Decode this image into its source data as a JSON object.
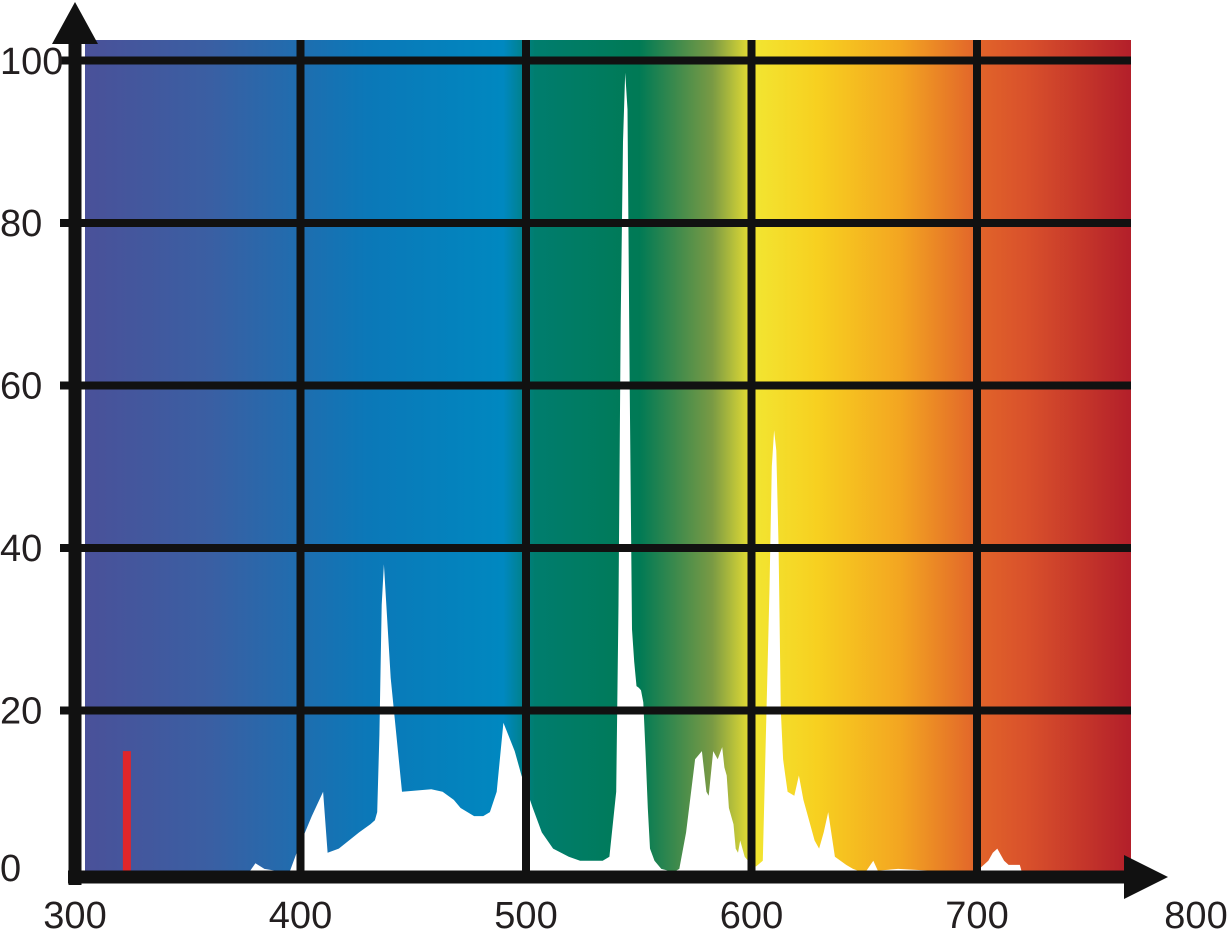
{
  "chart_data": {
    "type": "area",
    "title": "",
    "xlabel": "",
    "ylabel": "",
    "xlim": [
      300,
      800
    ],
    "ylim": [
      0,
      100
    ],
    "x_ticks": [
      "300",
      "400",
      "500",
      "600",
      "700",
      "800"
    ],
    "y_ticks": [
      "0",
      "20",
      "40",
      "60",
      "80",
      "100"
    ],
    "grid": true,
    "background": "visible light spectrum gradient (violet to red)",
    "spectrum_colors": [
      "#4a5199",
      "#3a5fa3",
      "#0b78b8",
      "#0088c0",
      "#007d6e",
      "#007a55",
      "#7a9a44",
      "#f2e531",
      "#f7d020",
      "#f3a521",
      "#e2662a",
      "#d9512b",
      "#b31f2a"
    ],
    "series": [
      {
        "fill_color": "#ffffff",
        "x": [
          377,
          380,
          384,
          395,
          399,
          405,
          410,
          412,
          417,
          426,
          431,
          433,
          434,
          435,
          436,
          437,
          440,
          445,
          458,
          463,
          468,
          471,
          477,
          481,
          484,
          487,
          490,
          495,
          498,
          503,
          507,
          512,
          519,
          524,
          529,
          534,
          537,
          540,
          541,
          542,
          543,
          544,
          545,
          546,
          547,
          548,
          549,
          550,
          551,
          552,
          553,
          554,
          555,
          557,
          560,
          563,
          566,
          568,
          571,
          575,
          578,
          580,
          581,
          583,
          585,
          587,
          588,
          589,
          590,
          591,
          592,
          593,
          594,
          595,
          597,
          600,
          602,
          605,
          608,
          609,
          610,
          611,
          612,
          613,
          614,
          615,
          616,
          619,
          621,
          623,
          625,
          628,
          630,
          632,
          634,
          637,
          642,
          645,
          648,
          651,
          654,
          656,
          665,
          679,
          691,
          698,
          701,
          705,
          707,
          709,
          712,
          714,
          719,
          720
        ],
        "y": [
          0,
          1.2,
          0.5,
          0,
          3,
          7,
          10,
          2.5,
          3,
          5,
          6,
          6.5,
          7.5,
          17,
          33,
          38,
          24,
          10,
          10.3,
          10,
          9,
          8,
          7,
          7,
          7.5,
          10,
          18.5,
          15,
          12,
          8,
          5,
          3,
          2,
          1.5,
          1.5,
          1.5,
          2,
          10,
          33,
          68,
          90,
          98.5,
          94,
          60,
          30,
          26,
          23,
          22.8,
          22.5,
          21,
          15,
          8,
          3,
          1.5,
          0.5,
          0.3,
          0.2,
          0.5,
          5,
          14,
          15,
          10,
          9.5,
          15,
          14,
          15.5,
          13,
          12,
          8,
          7,
          6,
          3,
          2.5,
          4,
          2,
          1,
          0.8,
          1.5,
          35,
          50,
          54.5,
          52,
          40,
          20,
          14,
          12,
          10,
          9.5,
          12,
          9,
          7,
          4,
          3,
          5,
          7.5,
          2,
          1,
          0.5,
          0.2,
          0.3,
          1.5,
          0.3,
          0.5,
          0.3,
          0.3,
          0.2,
          0.5,
          1.5,
          2.5,
          3,
          1.5,
          1,
          1,
          0
        ]
      }
    ],
    "annotations": [
      {
        "type": "vertical-line",
        "x": 323,
        "y_from": 0,
        "y_to": 15,
        "color": "#e0262a"
      }
    ]
  }
}
